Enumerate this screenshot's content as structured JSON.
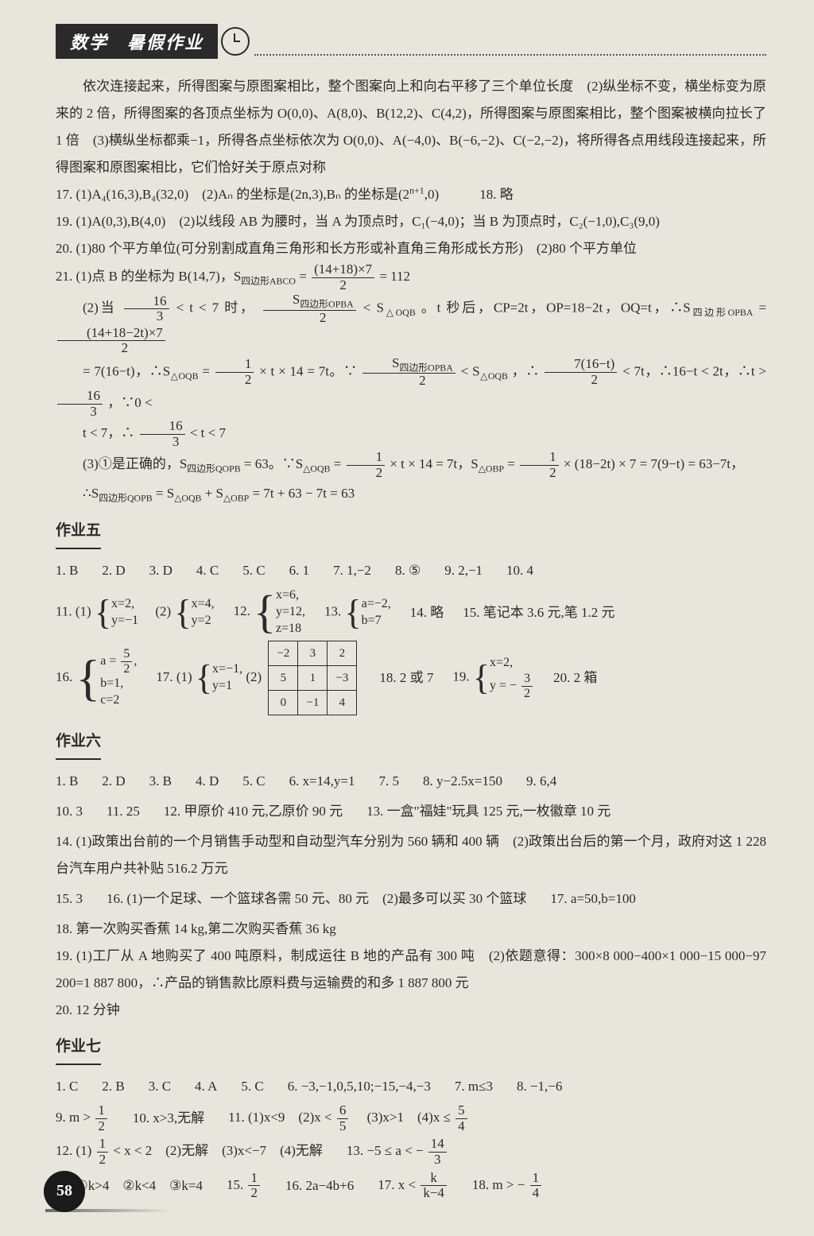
{
  "header": {
    "title": "数学　暑假作业"
  },
  "intro": {
    "p1": "依次连接起来，所得图案与原图案相比，整个图案向上和向右平移了三个单位长度　(2)纵坐标不变，横坐标变为原来的 2 倍，所得图案的各顶点坐标为 O(0,0)、A(8,0)、B(12,2)、C(4,2)，所得图案与原图案相比，整个图案被横向拉长了 1 倍　(3)横纵坐标都乘−1，所得各点坐标依次为 O(0,0)、A(−4,0)、B(−6,−2)、C(−2,−2)，将所得各点用线段连接起来，所得图案和原图案相比，它们恰好关于原点对称"
  },
  "q17": {
    "a": "(1)A₄(16,3),B₄(32,0)　(2)Aₙ 的坐标是(2n,3),Bₙ 的坐标是(2",
    "b": ",0)",
    "exp": "n+1",
    "q18": "18. 略"
  },
  "q19": "19. (1)A(0,3),B(4,0)　(2)以线段 AB 为腰时，当 A 为顶点时，C₁(−4,0)；当 B 为顶点时，C₂(−1,0),C₃(9,0)",
  "q20": "20. (1)80 个平方单位(可分别割成直角三角形和长方形或补直角三角形成长方形)　(2)80 个平方单位",
  "q21": {
    "p1a": "21. (1)点 B 的坐标为 B(14,7)，S",
    "p1_sub1": "四边形ABCO",
    "p1_eq": " = ",
    "frac1": {
      "num": "(14+18)×7",
      "den": "2"
    },
    "p1b": " = 112",
    "p2a": "(2)当 ",
    "frac163a": {
      "num": "16",
      "den": "3"
    },
    "p2b": " < t < 7 时，",
    "fracS": {
      "num": "S",
      "subS": "四边形OPBA",
      "den": "2"
    },
    "p2c": " < S",
    "subOQB1": "△OQB",
    "p2d": "。t 秒后，CP=2t，OP=18−2t，OQ=t，∴S",
    "sub4b": "四边形OPBA",
    "p2e": " = ",
    "frac_big": {
      "num": "(14+18−2t)×7",
      "den": "2"
    },
    "p3a": "= 7(16−t)，∴S",
    "subOQB2": "△OQB",
    "p3b": " = ",
    "frac12a": {
      "num": "1",
      "den": "2"
    },
    "p3c": " × t × 14 = 7t。∵ ",
    "fracS2": {
      "num": "S",
      "subS2": "四边形OPBA",
      "den2": "2"
    },
    "p3d": " < S",
    "subOQB3": "△OQB",
    "p3e": "，∴ ",
    "frac716t": {
      "num": "7(16−t)",
      "den": "2"
    },
    "p3f": " < 7t，∴16−t < 2t，∴t > ",
    "frac163b": {
      "num": "16",
      "den": "3"
    },
    "p3g": "，∵0 <",
    "p4a": "t < 7，∴ ",
    "frac163c": {
      "num": "16",
      "den": "3"
    },
    "p4b": " < t < 7",
    "p5a": "(3)①是正确的，S",
    "subQOPB": "四边形QOPB",
    "p5b": " = 63。∵S",
    "subOQB4": "△OQB",
    "p5c": " = ",
    "frac12b": {
      "num": "1",
      "den": "2"
    },
    "p5d": " × t × 14 = 7t，S",
    "subOBP": "△OBP",
    "p5e": " = ",
    "frac12c": {
      "num": "1",
      "den": "2"
    },
    "p5f": " × (18−2t) × 7 = 7(9−t) = 63−7t，",
    "p6a": "∴S",
    "subQOPB2": "四边形QOPB",
    "p6b": " = S",
    "subOQB5": "△OQB",
    "p6c": " + S",
    "subOBP2": "△OBP",
    "p6d": " = 7t + 63 − 7t = 63"
  },
  "sec5": {
    "title": "作业五",
    "row1": [
      "1. B",
      "2. D",
      "3. D",
      "4. C",
      "5. C",
      "6. 1",
      "7. 1,−2",
      "8. ⑤",
      "9. 2,−1",
      "10. 4"
    ],
    "q11": {
      "label": "11. (1)",
      "s1a": "x=2,",
      "s1b": "y=−1",
      "mid": "(2)",
      "s2a": "x=4,",
      "s2b": "y=2"
    },
    "q12": {
      "label": "12.",
      "l1": "x=6,",
      "l2": "y=12,",
      "l3": "z=18"
    },
    "q13": {
      "label": "13.",
      "l1": "a=−2,",
      "l2": "b=7"
    },
    "q14": "14. 略",
    "q15": "15. 笔记本 3.6 元,笔 1.2 元",
    "q16": {
      "label": "16.",
      "l1a": "a = ",
      "l1frac": {
        "num": "5",
        "den": "2"
      },
      "l1b": ",",
      "l2": "b=1,",
      "l3": "c=2"
    },
    "q17": {
      "label": "17. (1)",
      "l1": "x=−1,",
      "l2": "y=1",
      "mid": "(2)"
    },
    "table": {
      "r1": [
        "−2",
        "3",
        "2"
      ],
      "r2": [
        "5",
        "1",
        "−3"
      ],
      "r3": [
        "0",
        "−1",
        "4"
      ]
    },
    "q18": "18. 2 或 7",
    "q19": {
      "label": "19.",
      "l1": "x=2,",
      "l2a": "y = − ",
      "l2frac": {
        "num": "3",
        "den": "2"
      }
    },
    "q20": "20. 2 箱"
  },
  "sec6": {
    "title": "作业六",
    "row1": [
      "1. B",
      "2. D",
      "3. B",
      "4. D",
      "5. C",
      "6. x=14,y=1",
      "7. 5",
      "8. y−2.5x=150",
      "9. 6,4"
    ],
    "row2": [
      "10. 3",
      "11. 25",
      "12. 甲原价 410 元,乙原价 90 元",
      "13. 一盒\"福娃\"玩具 125 元,一枚徽章 10 元"
    ],
    "q14": "14. (1)政策出台前的一个月销售手动型和自动型汽车分别为 560 辆和 400 辆　(2)政策出台后的第一个月，政府对这 1 228 台汽车用户共补贴 516.2 万元",
    "row3": [
      "15. 3",
      "16. (1)一个足球、一个篮球各需 50 元、80 元　(2)最多可以买 30 个篮球",
      "17. a=50,b=100"
    ],
    "q18": "18. 第一次购买香蕉 14 kg,第二次购买香蕉 36 kg",
    "q19": "19. (1)工厂从 A 地购买了 400 吨原料，制成运往 B 地的产品有 300 吨　(2)依题意得：300×8 000−400×1 000−15 000−97 200=1 887 800，∴产品的销售款比原料费与运输费的和多 1 887 800 元",
    "q20": "20. 12 分钟"
  },
  "sec7": {
    "title": "作业七",
    "row1": [
      "1. C",
      "2. B",
      "3. C",
      "4. A",
      "5. C",
      "6. −3,−1,0,5,10;−15,−4,−3",
      "7. m≤3",
      "8. −1,−6"
    ],
    "q9": {
      "label": "9. m > ",
      "frac": {
        "num": "1",
        "den": "2"
      }
    },
    "q10": "10. x>3,无解",
    "q11": {
      "a": "11. (1)x<9　(2)x < ",
      "frac1": {
        "num": "6",
        "den": "5"
      },
      "b": "　(3)x>1　(4)x ≤ ",
      "frac2": {
        "num": "5",
        "den": "4"
      }
    },
    "q12": {
      "a": "12. (1)",
      "frac1": {
        "num": "1",
        "den": "2"
      },
      "b": " < x < 2　(2)无解　(3)x<−7　(4)无解"
    },
    "q13": {
      "a": "13. −5 ≤ a < − ",
      "frac": {
        "num": "14",
        "den": "3"
      }
    },
    "q14": {
      "a": "14. ①k>4　②k<4　③k=4",
      "q15": "15. ",
      "frac15": {
        "num": "1",
        "den": "2"
      },
      "q16": "16. 2a−4b+6",
      "q17a": "17. x < ",
      "frac17": {
        "num": "k",
        "den": "k−4"
      },
      "q18a": "18. m > − ",
      "frac18": {
        "num": "1",
        "den": "4"
      }
    }
  },
  "pagenum": "58"
}
